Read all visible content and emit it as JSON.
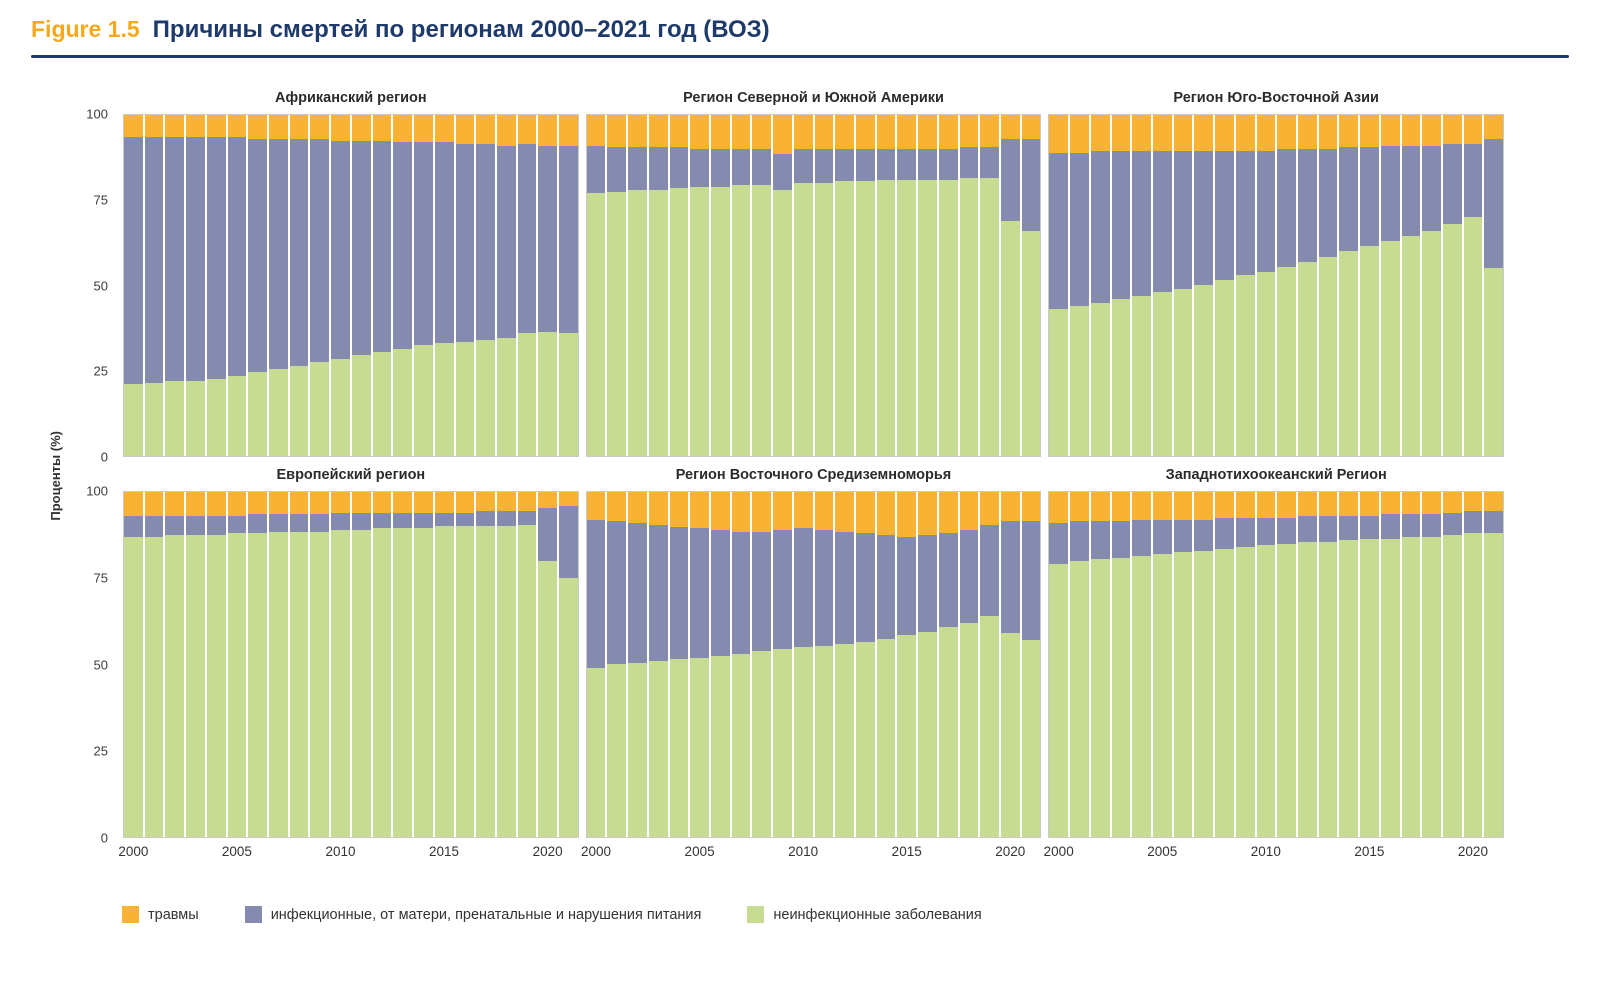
{
  "figure": {
    "label": "Figure 1.5",
    "title": "Причины смертей по регионам 2000–2021 год (ВОЗ)"
  },
  "axis": {
    "y_label": "Проценты (%)",
    "y_ticks": [
      100,
      75,
      50,
      25,
      0
    ],
    "x_ticks": [
      2000,
      2005,
      2010,
      2015,
      2020
    ]
  },
  "legend": [
    {
      "label": "травмы",
      "color": "#F9B233",
      "series": "injuries"
    },
    {
      "label": "инфекционные, от матери, пренатальные и нарушения питания",
      "color": "#858BAE",
      "series": "infectious"
    },
    {
      "label": "неинфекционные заболевания",
      "color": "#C7DC92",
      "series": "ncd"
    }
  ],
  "chart_data": {
    "type": "bar",
    "stacked": true,
    "percent": true,
    "ylim": [
      0,
      100
    ],
    "grid": false,
    "x": [
      2000,
      2001,
      2002,
      2003,
      2004,
      2005,
      2006,
      2007,
      2008,
      2009,
      2010,
      2011,
      2012,
      2013,
      2014,
      2015,
      2016,
      2017,
      2018,
      2019,
      2020,
      2021
    ],
    "colors": {
      "injuries": "#F9B233",
      "infectious": "#858BAE",
      "ncd": "#C7DC92"
    },
    "panels": [
      {
        "title": "Африканский регион",
        "ncd": [
          21,
          21.5,
          22,
          22,
          22.5,
          23.5,
          24.5,
          25.5,
          26.5,
          27.5,
          28.5,
          29.5,
          30.5,
          31.5,
          32.5,
          33,
          33.5,
          34,
          34.5,
          36,
          36.5,
          36
        ],
        "infectious": [
          72.5,
          72,
          71.5,
          71.5,
          71,
          70,
          68.5,
          67.5,
          66.5,
          65.5,
          64,
          63,
          62,
          60.5,
          59.5,
          59,
          58,
          57.5,
          56.5,
          55.5,
          54.5,
          55
        ],
        "injuries": [
          6.5,
          6.5,
          6.5,
          6.5,
          6.5,
          6.5,
          7,
          7,
          7,
          7,
          7.5,
          7.5,
          7.5,
          8,
          8,
          8,
          8.5,
          8.5,
          9,
          8.5,
          9,
          9
        ]
      },
      {
        "title": "Регион Северной и Южной Америки",
        "ncd": [
          77,
          77.5,
          78,
          78,
          78.5,
          79,
          79,
          79.5,
          79.5,
          78,
          80,
          80,
          80.5,
          80.5,
          81,
          81,
          81,
          81,
          81.5,
          81.5,
          69,
          66
        ],
        "infectious": [
          14,
          13,
          12.5,
          12.5,
          12,
          11,
          11,
          10.5,
          10.5,
          10.5,
          10,
          10,
          9.5,
          9.5,
          9,
          9,
          9,
          9,
          9,
          9,
          24,
          27
        ],
        "injuries": [
          9,
          9.5,
          9.5,
          9.5,
          9.5,
          10,
          10,
          10,
          10,
          11.5,
          10,
          10,
          10,
          10,
          10,
          10,
          10,
          10,
          9.5,
          9.5,
          7,
          7
        ]
      },
      {
        "title": "Регион Юго-Восточной Азии",
        "ncd": [
          43,
          44,
          45,
          46,
          47,
          48,
          49,
          50,
          51.5,
          53,
          54,
          55.5,
          57,
          58.5,
          60,
          61.5,
          63,
          64.5,
          66,
          68,
          70,
          55
        ],
        "infectious": [
          46,
          45,
          44.5,
          43.5,
          42.5,
          41.5,
          40.5,
          39.5,
          38,
          36.5,
          35.5,
          34.5,
          33,
          31.5,
          30.5,
          29,
          28,
          26.5,
          25,
          23.5,
          21.5,
          38
        ],
        "injuries": [
          11,
          11,
          10.5,
          10.5,
          10.5,
          10.5,
          10.5,
          10.5,
          10.5,
          10.5,
          10.5,
          10,
          10,
          10,
          9.5,
          9.5,
          9,
          9,
          9,
          8.5,
          8.5,
          7
        ]
      },
      {
        "title": "Европейский регион",
        "ncd": [
          87,
          87,
          87.5,
          87.5,
          87.5,
          88,
          88,
          88.5,
          88.5,
          88.5,
          89,
          89,
          89.5,
          89.5,
          89.5,
          90,
          90,
          90,
          90,
          90.5,
          80,
          75
        ],
        "infectious": [
          6,
          6,
          5.5,
          5.5,
          5.5,
          5,
          5.5,
          5,
          5,
          5,
          5,
          5,
          4.5,
          4.5,
          4.5,
          4,
          4,
          4.5,
          4.5,
          4,
          15.5,
          21
        ],
        "injuries": [
          7,
          7,
          7,
          7,
          7,
          7,
          6.5,
          6.5,
          6.5,
          6.5,
          6,
          6,
          6,
          6,
          6,
          6,
          6,
          5.5,
          5.5,
          5.5,
          4.5,
          4
        ]
      },
      {
        "title": "Регион Восточного Средиземноморья",
        "ncd": [
          49,
          50,
          50.5,
          51,
          51.5,
          52,
          52.5,
          53,
          54,
          54.5,
          55,
          55.5,
          56,
          56.5,
          57.5,
          58.5,
          59.5,
          61,
          62,
          64,
          59,
          57
        ],
        "infectious": [
          43,
          41.5,
          40.5,
          39.5,
          38.5,
          37.5,
          36.5,
          35.5,
          34.5,
          34.5,
          34.5,
          33.5,
          32.5,
          31.5,
          30,
          28.5,
          28,
          27,
          27,
          26.5,
          32.5,
          34.5
        ],
        "injuries": [
          8,
          8.5,
          9,
          9.5,
          10,
          10.5,
          11,
          11.5,
          11.5,
          11,
          10.5,
          11,
          11.5,
          12,
          12.5,
          13,
          12.5,
          12,
          11,
          9.5,
          8.5,
          8.5
        ]
      },
      {
        "title": "Западнотихоокеанский Регион",
        "ncd": [
          79,
          80,
          80.5,
          81,
          81.5,
          82,
          82.5,
          83,
          83.5,
          84,
          84.5,
          85,
          85.5,
          85.5,
          86,
          86.5,
          86.5,
          87,
          87,
          87.5,
          88,
          88
        ],
        "infectious": [
          12,
          11.5,
          11,
          10.5,
          10.5,
          10,
          9.5,
          9,
          9,
          8.5,
          8,
          7.5,
          7.5,
          7.5,
          7,
          6.5,
          7,
          6.5,
          6.5,
          6.5,
          6.5,
          6.5
        ],
        "injuries": [
          9,
          8.5,
          8.5,
          8.5,
          8,
          8,
          8,
          8,
          7.5,
          7.5,
          7.5,
          7.5,
          7,
          7,
          7,
          7,
          6.5,
          6.5,
          6.5,
          6,
          5.5,
          5.5
        ]
      }
    ]
  }
}
